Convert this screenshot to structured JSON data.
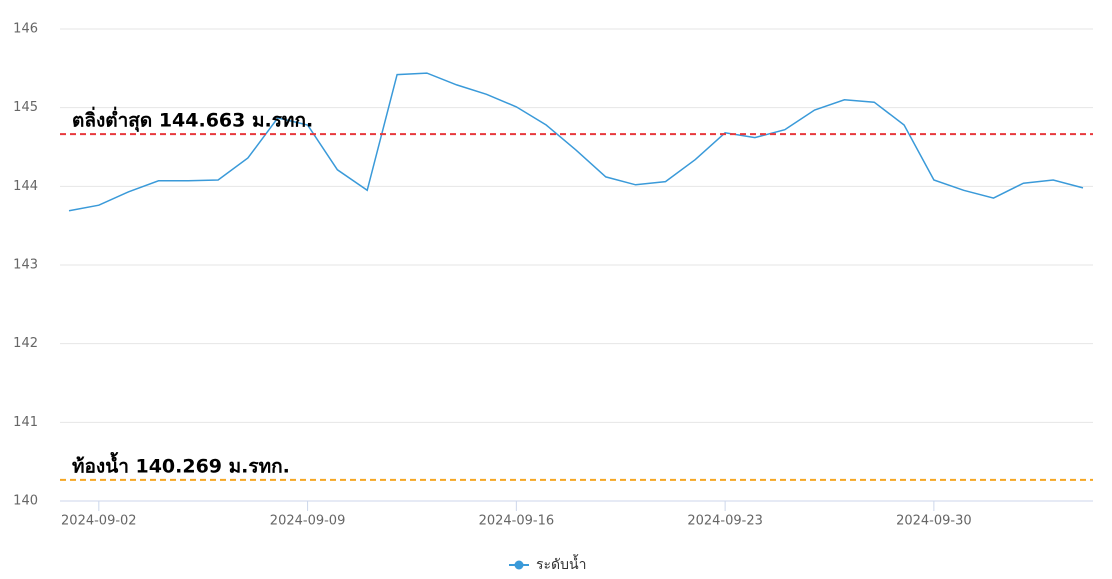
{
  "chart_data": {
    "type": "line",
    "x": [
      "2024-09-01",
      "2024-09-02",
      "2024-09-03",
      "2024-09-04",
      "2024-09-05",
      "2024-09-06",
      "2024-09-07",
      "2024-09-08",
      "2024-09-09",
      "2024-09-10",
      "2024-09-11",
      "2024-09-12",
      "2024-09-13",
      "2024-09-14",
      "2024-09-15",
      "2024-09-16",
      "2024-09-17",
      "2024-09-18",
      "2024-09-19",
      "2024-09-20",
      "2024-09-21",
      "2024-09-22",
      "2024-09-23",
      "2024-09-24",
      "2024-09-25",
      "2024-09-26",
      "2024-09-27",
      "2024-09-28",
      "2024-09-29",
      "2024-09-30",
      "2024-10-01",
      "2024-10-02",
      "2024-10-03",
      "2024-10-04",
      "2024-10-05"
    ],
    "series": [
      {
        "name": "ระดับน้ำ",
        "color": "#3a9ad9",
        "values": [
          143.69,
          143.76,
          143.93,
          144.07,
          144.07,
          144.08,
          144.36,
          144.87,
          144.78,
          144.21,
          143.95,
          145.42,
          145.44,
          145.29,
          145.17,
          145.01,
          144.78,
          144.46,
          144.12,
          144.02,
          144.06,
          144.34,
          144.68,
          144.62,
          144.72,
          144.97,
          145.1,
          145.07,
          144.78,
          144.08,
          143.95,
          143.85,
          144.04,
          144.08,
          143.98
        ]
      }
    ],
    "xlim": [
      "2024-09-01",
      "2024-10-05"
    ],
    "xticks": [
      "2024-09-02",
      "2024-09-09",
      "2024-09-16",
      "2024-09-23",
      "2024-09-30"
    ],
    "ylim": [
      140,
      146
    ],
    "yticks": [
      140,
      141,
      142,
      143,
      144,
      145,
      146
    ],
    "grid": true,
    "reference_lines": [
      {
        "value": 144.663,
        "label": "ตลิ่งต่ำสุด 144.663 ม.รทก.",
        "color": "#e8383d"
      },
      {
        "value": 140.269,
        "label": "ท้องน้ำ 140.269 ม.รทก.",
        "color": "#f5a623"
      }
    ],
    "legend": "bottom"
  }
}
